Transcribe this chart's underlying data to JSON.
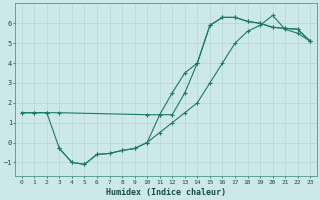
{
  "xlabel": "Humidex (Indice chaleur)",
  "xlim": [
    -0.5,
    23.5
  ],
  "ylim": [
    -1.7,
    7.0
  ],
  "bg_color": "#cce8e8",
  "line_color": "#1a7a6a",
  "grid_color": "#b8d4d4",
  "line1_x": [
    0,
    1,
    2,
    3,
    4,
    5,
    6,
    7,
    8,
    9,
    10,
    11,
    12,
    13,
    14,
    15,
    16,
    17,
    18,
    19,
    20,
    21,
    22,
    23
  ],
  "line1_y": [
    1.5,
    1.5,
    1.5,
    -0.3,
    -1.0,
    -1.1,
    -0.6,
    -0.55,
    -0.4,
    -0.3,
    0.0,
    1.4,
    1.4,
    2.5,
    4.0,
    5.9,
    6.3,
    6.3,
    6.1,
    6.0,
    5.8,
    5.75,
    5.7,
    5.1
  ],
  "line2_x": [
    3,
    4,
    5,
    6,
    7,
    8,
    9,
    10,
    11,
    12,
    13,
    14,
    15,
    16,
    17,
    18,
    19,
    20,
    21,
    22,
    23
  ],
  "line2_y": [
    -0.3,
    -1.0,
    -1.1,
    -0.6,
    -0.55,
    -0.4,
    -0.3,
    0.0,
    0.5,
    1.0,
    1.5,
    2.0,
    3.0,
    4.0,
    5.0,
    5.6,
    5.9,
    6.4,
    5.7,
    5.5,
    5.1
  ],
  "line3_x": [
    0,
    1,
    2,
    3,
    10,
    11,
    12,
    13,
    14,
    15,
    16,
    17,
    18,
    19,
    20,
    21,
    22,
    23
  ],
  "line3_y": [
    1.5,
    1.5,
    1.5,
    1.5,
    1.4,
    1.4,
    2.5,
    3.5,
    4.0,
    5.9,
    6.3,
    6.3,
    6.1,
    6.0,
    5.8,
    5.75,
    5.7,
    5.1
  ],
  "xticks": [
    0,
    1,
    2,
    3,
    4,
    5,
    6,
    7,
    8,
    9,
    10,
    11,
    12,
    13,
    14,
    15,
    16,
    17,
    18,
    19,
    20,
    21,
    22,
    23
  ],
  "yticks": [
    -1,
    0,
    1,
    2,
    3,
    4,
    5,
    6
  ]
}
